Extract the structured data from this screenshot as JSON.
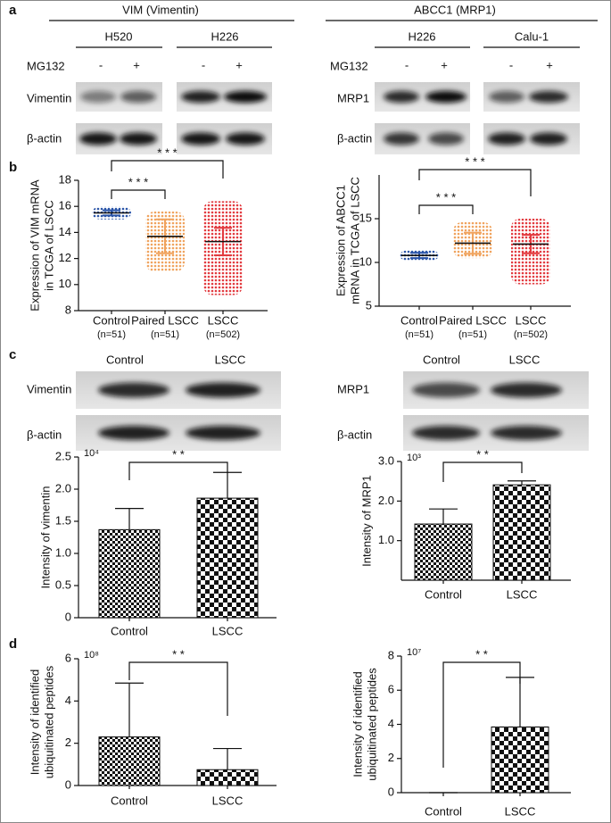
{
  "panels": [
    "a",
    "b",
    "c",
    "d"
  ],
  "blot_a": {
    "treatment_label": "MG132",
    "treatment": [
      "-",
      "+"
    ],
    "groups": [
      {
        "title": "VIM (Vimentin)",
        "cells": [
          "H520",
          "H226"
        ],
        "rows": [
          "Vimentin",
          "β-actin"
        ]
      },
      {
        "title": "ABCC1 (MRP1)",
        "cells": [
          "H226",
          "Calu-1"
        ],
        "rows": [
          "MRP1",
          "β-actin"
        ]
      }
    ]
  },
  "blot_c": {
    "lanes": [
      "Control",
      "LSCC"
    ],
    "groups": [
      {
        "rows": [
          "Vimentin",
          "β-actin"
        ]
      },
      {
        "rows": [
          "MRP1",
          "β-actin"
        ]
      }
    ]
  },
  "chart_data": [
    {
      "type": "dot-plot",
      "ylabel": [
        "Expression of VIM mRNA",
        "in TCGA of LSCC"
      ],
      "categories": [
        "Control",
        "Paired LSCC",
        "LSCC"
      ],
      "category_notes": [
        "(n=51)",
        "(n=51)",
        "(n=502)"
      ],
      "values": [
        15.5,
        13.7,
        13.3
      ],
      "errors": [
        0.2,
        1.3,
        1.05
      ],
      "ranges": [
        [
          15.0,
          16.0
        ],
        [
          11.0,
          15.6
        ],
        [
          9.2,
          16.4
        ]
      ],
      "colors": [
        "#2b55a8",
        "#f0a35e",
        "#e23a3f"
      ],
      "ylim": [
        8,
        18
      ],
      "yticks": [
        8,
        10,
        12,
        14,
        16,
        18
      ],
      "annotations": [
        {
          "text": "* * *",
          "between": [
            "Control",
            "LSCC"
          ]
        },
        {
          "text": "* * *",
          "between": [
            "Control",
            "Paired LSCC"
          ]
        }
      ]
    },
    {
      "type": "dot-plot",
      "ylabel": [
        "Expression of ABCC1",
        "mRNA in TCGA of LSCC"
      ],
      "categories": [
        "Control",
        "Paired LSCC",
        "LSCC"
      ],
      "category_notes": [
        "(n=51)",
        "(n=51)",
        "(n=502)"
      ],
      "values": [
        10.8,
        12.2,
        12.1
      ],
      "errors": [
        0.3,
        1.2,
        1.05
      ],
      "ranges": [
        [
          10.2,
          11.4
        ],
        [
          10.5,
          14.6
        ],
        [
          7.5,
          15.0
        ]
      ],
      "colors": [
        "#2b55a8",
        "#f0a35e",
        "#e23a3f"
      ],
      "ylim": [
        5,
        20
      ],
      "yticks": [
        5,
        10,
        15
      ],
      "annotations": [
        {
          "text": "* * *",
          "between": [
            "Control",
            "LSCC"
          ]
        },
        {
          "text": "* * *",
          "between": [
            "Control",
            "Paired LSCC"
          ]
        }
      ]
    },
    {
      "type": "bar",
      "ylabel": [
        "Intensity of vimentin"
      ],
      "exponent": "10⁴",
      "categories": [
        "Control",
        "LSCC"
      ],
      "values": [
        1.37,
        1.86
      ],
      "errors": [
        0.33,
        0.4
      ],
      "ylim": [
        0,
        2.5
      ],
      "yticks": [
        0,
        0.5,
        {
          "value": 1,
          "label": "1.0"
        },
        1.5,
        {
          "value": 2,
          "label": "2.0"
        },
        2.5
      ],
      "annotations": [
        {
          "text": "* *",
          "between": [
            "Control",
            "LSCC"
          ]
        }
      ]
    },
    {
      "type": "bar",
      "ylabel": [
        "Intensity of MRP1"
      ],
      "exponent": "10³",
      "categories": [
        "Control",
        "LSCC"
      ],
      "values": [
        1.42,
        2.41
      ],
      "errors": [
        0.38,
        0.1
      ],
      "ylim": [
        0,
        3
      ],
      "yticks": [
        {
          "value": 1,
          "label": "1.0"
        },
        {
          "value": 2,
          "label": "2.0"
        },
        {
          "value": 3,
          "label": "3.0"
        }
      ],
      "annotations": [
        {
          "text": "* *",
          "between": [
            "Control",
            "LSCC"
          ]
        }
      ]
    },
    {
      "type": "bar",
      "ylabel": [
        "Intensity of identified",
        "ubiquitinated peptides"
      ],
      "exponent": "10⁸",
      "categories": [
        "Control",
        "LSCC"
      ],
      "values": [
        2.3,
        0.75
      ],
      "errors": [
        2.55,
        1.0
      ],
      "ylim": [
        0,
        6
      ],
      "yticks": [
        0,
        2,
        4,
        6
      ],
      "annotations": [
        {
          "text": "* *",
          "between": [
            "Control",
            "LSCC"
          ]
        }
      ]
    },
    {
      "type": "bar",
      "ylabel": [
        "Intensity of identified",
        "ubiquitinated peptides"
      ],
      "exponent": "10⁷",
      "categories": [
        "Control",
        "LSCC"
      ],
      "values": [
        0,
        3.85
      ],
      "errors": [
        0,
        2.9
      ],
      "ylim": [
        0,
        8
      ],
      "yticks": [
        0,
        2,
        4,
        6,
        8
      ],
      "annotations": [
        {
          "text": "* *",
          "between": [
            "Control",
            "LSCC"
          ]
        }
      ]
    }
  ]
}
